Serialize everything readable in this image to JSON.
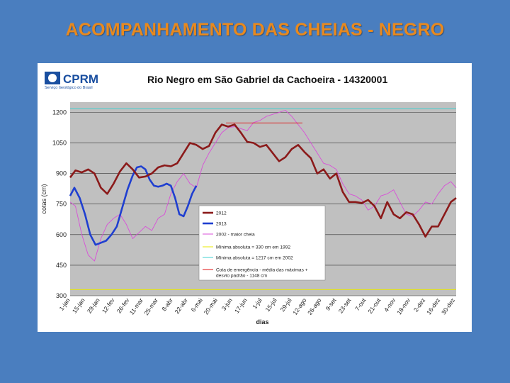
{
  "slide": {
    "title": "ACOMPANHAMENTO DAS CHEIAS - NEGRO"
  },
  "logo": {
    "name": "CPRM",
    "subtitle": "Serviço Geológico do Brasil"
  },
  "colors": {
    "background": "#4a7ebf",
    "title": "#e8891e",
    "plot_area": "#c0c0c0",
    "s2012": "#8b1a1a",
    "s2013": "#1f3fd0",
    "smax": "#d84fd8",
    "smin_abs": "#e8e800",
    "smin_2002": "#40d0d0",
    "emergencia": "#e01010"
  },
  "chart_data": {
    "type": "line",
    "title": "Rio Negro em São Gabriel da Cachoeira - 14320001",
    "xlabel": "dias",
    "ylabel": "cotas (cm)",
    "ylim": [
      300,
      1250
    ],
    "yticks": [
      300,
      450,
      600,
      750,
      900,
      1050,
      1200
    ],
    "xlim": [
      1,
      365
    ],
    "x_unit": "day of year",
    "grid": "horizontal",
    "x_tick_labels": [
      "1-jan",
      "15-jan",
      "29-jan",
      "12-fev",
      "26-fev",
      "11-mar",
      "25-mar",
      "8-abr",
      "22-abr",
      "6-mai",
      "20-mai",
      "3-jun",
      "17-jun",
      "1-jul",
      "15-jul",
      "29-jul",
      "12-ago",
      "26-ago",
      "9-set",
      "23-set",
      "7-out",
      "21-out",
      "4-nov",
      "18-nov",
      "2-dez",
      "16-dez",
      "30-dez"
    ],
    "x_tick_days": [
      1,
      15,
      29,
      43,
      57,
      70,
      84,
      98,
      112,
      126,
      140,
      154,
      168,
      182,
      196,
      210,
      224,
      238,
      252,
      266,
      280,
      294,
      308,
      322,
      336,
      350,
      364
    ],
    "legend_position": "bottom-center",
    "series": [
      {
        "name": "2012",
        "key": "s2012",
        "x": [
          1,
          6,
          12,
          18,
          24,
          30,
          36,
          42,
          48,
          54,
          60,
          66,
          72,
          78,
          84,
          90,
          96,
          102,
          108,
          114,
          120,
          126,
          132,
          138,
          144,
          150,
          156,
          162,
          168,
          174,
          180,
          186,
          192,
          198,
          204,
          210,
          216,
          222,
          228,
          234,
          240,
          246,
          252,
          258,
          264,
          270,
          276,
          282,
          288,
          294,
          300,
          306,
          312,
          318,
          324,
          330,
          336,
          342,
          348,
          354,
          360,
          365
        ],
        "y": [
          880,
          915,
          905,
          920,
          900,
          830,
          800,
          850,
          910,
          950,
          920,
          880,
          885,
          900,
          930,
          940,
          935,
          950,
          1000,
          1050,
          1040,
          1020,
          1035,
          1100,
          1140,
          1130,
          1140,
          1100,
          1055,
          1050,
          1030,
          1040,
          1000,
          960,
          980,
          1020,
          1040,
          1005,
          975,
          900,
          920,
          875,
          900,
          810,
          760,
          760,
          755,
          770,
          740,
          680,
          760,
          700,
          680,
          710,
          700,
          650,
          590,
          640,
          640,
          700,
          760,
          780
        ]
      },
      {
        "name": "2013",
        "key": "s2013",
        "x": [
          1,
          5,
          10,
          15,
          20,
          25,
          30,
          35,
          40,
          45,
          50,
          55,
          60,
          64,
          68,
          72,
          76,
          80,
          84,
          88,
          92,
          96,
          100,
          104,
          108,
          112,
          116,
          120
        ],
        "y": [
          790,
          830,
          780,
          700,
          600,
          550,
          560,
          570,
          600,
          640,
          730,
          820,
          890,
          930,
          935,
          920,
          870,
          840,
          835,
          840,
          850,
          840,
          780,
          700,
          690,
          740,
          800,
          840
        ]
      },
      {
        "name": "2002 - maior cheia",
        "key": "smax",
        "x": [
          1,
          6,
          12,
          18,
          24,
          30,
          36,
          42,
          48,
          54,
          60,
          66,
          72,
          78,
          84,
          90,
          96,
          102,
          108,
          114,
          120,
          126,
          132,
          138,
          144,
          150,
          156,
          162,
          168,
          174,
          180,
          186,
          192,
          198,
          204,
          210,
          216,
          222,
          228,
          234,
          240,
          246,
          252,
          258,
          264,
          270,
          276,
          282,
          288,
          294,
          300,
          306,
          312,
          318,
          324,
          330,
          336,
          342,
          348,
          354,
          360,
          365
        ],
        "y": [
          760,
          740,
          600,
          500,
          470,
          580,
          650,
          680,
          700,
          650,
          580,
          610,
          640,
          620,
          680,
          700,
          800,
          860,
          900,
          850,
          830,
          940,
          1000,
          1050,
          1100,
          1125,
          1130,
          1120,
          1110,
          1150,
          1160,
          1180,
          1190,
          1200,
          1210,
          1180,
          1140,
          1100,
          1050,
          1000,
          950,
          940,
          920,
          850,
          800,
          790,
          770,
          720,
          740,
          790,
          800,
          820,
          760,
          700,
          690,
          720,
          760,
          750,
          800,
          840,
          860,
          830
        ]
      },
      {
        "name": "Mínima absoluta = 330 cm em 1992",
        "key": "smin_abs",
        "x": [
          1,
          365
        ],
        "y": [
          330,
          330
        ]
      },
      {
        "name": "Mínima absoluta = 1217 cm em 2002",
        "key": "smin_2002",
        "x": [
          1,
          365
        ],
        "y": [
          1217,
          1217
        ]
      },
      {
        "name": "Cota de emergência - média das máximas + desvio padrão - 1148 cm",
        "key": "emergencia",
        "x": [
          148,
          220
        ],
        "y": [
          1148,
          1148
        ]
      }
    ]
  }
}
